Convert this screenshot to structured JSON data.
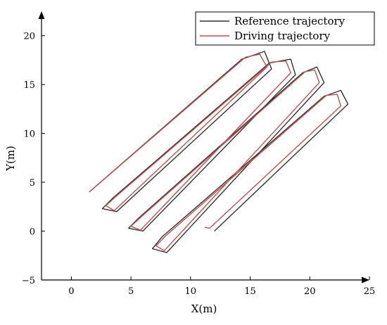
{
  "chart_data": {
    "type": "line",
    "xlabel": "X(m)",
    "ylabel": "Y(m)",
    "xlim": [
      -2.5,
      25
    ],
    "ylim": [
      -5,
      22.5
    ],
    "xticks": [
      0,
      5,
      10,
      15,
      20,
      25
    ],
    "yticks": [
      -5,
      0,
      5,
      10,
      15,
      20
    ],
    "legend_position": "top-right",
    "grid": false,
    "series": [
      {
        "name": "Reference trajectory",
        "color": "#333333",
        "points": [
          [
            1.5,
            4.0
          ],
          [
            14.3,
            17.6
          ],
          [
            16.2,
            18.4
          ],
          [
            16.8,
            16.6
          ],
          [
            3.8,
            2.0
          ],
          [
            2.6,
            2.3
          ],
          [
            3.5,
            3.4
          ],
          [
            16.6,
            17.2
          ],
          [
            18.4,
            17.6
          ],
          [
            18.8,
            16.0
          ],
          [
            6.0,
            0.0
          ],
          [
            4.8,
            0.3
          ],
          [
            5.7,
            1.4
          ],
          [
            19.4,
            16.2
          ],
          [
            20.6,
            16.8
          ],
          [
            21.2,
            15.2
          ],
          [
            8.0,
            -2.2
          ],
          [
            6.8,
            -1.8
          ],
          [
            7.6,
            -0.6
          ],
          [
            21.2,
            13.8
          ],
          [
            22.6,
            14.4
          ],
          [
            23.2,
            13.0
          ],
          [
            12.0,
            0.0
          ]
        ]
      },
      {
        "name": "Driving trajectory",
        "color": "#c0504d",
        "points": [
          [
            1.5,
            4.0
          ],
          [
            14.6,
            17.8
          ],
          [
            15.8,
            18.1
          ],
          [
            16.4,
            16.8
          ],
          [
            3.6,
            2.1
          ],
          [
            2.9,
            2.6
          ],
          [
            3.7,
            3.5
          ],
          [
            16.8,
            17.3
          ],
          [
            18.0,
            17.4
          ],
          [
            18.4,
            16.2
          ],
          [
            5.8,
            0.1
          ],
          [
            5.0,
            0.5
          ],
          [
            5.9,
            1.5
          ],
          [
            19.6,
            16.3
          ],
          [
            20.4,
            16.5
          ],
          [
            20.8,
            15.2
          ],
          [
            7.8,
            -2.0
          ],
          [
            7.1,
            -1.5
          ],
          [
            7.9,
            -0.5
          ],
          [
            21.4,
            13.9
          ],
          [
            22.3,
            14.0
          ],
          [
            22.6,
            12.8
          ],
          [
            11.6,
            0.3
          ],
          [
            11.2,
            0.4
          ]
        ]
      }
    ]
  }
}
